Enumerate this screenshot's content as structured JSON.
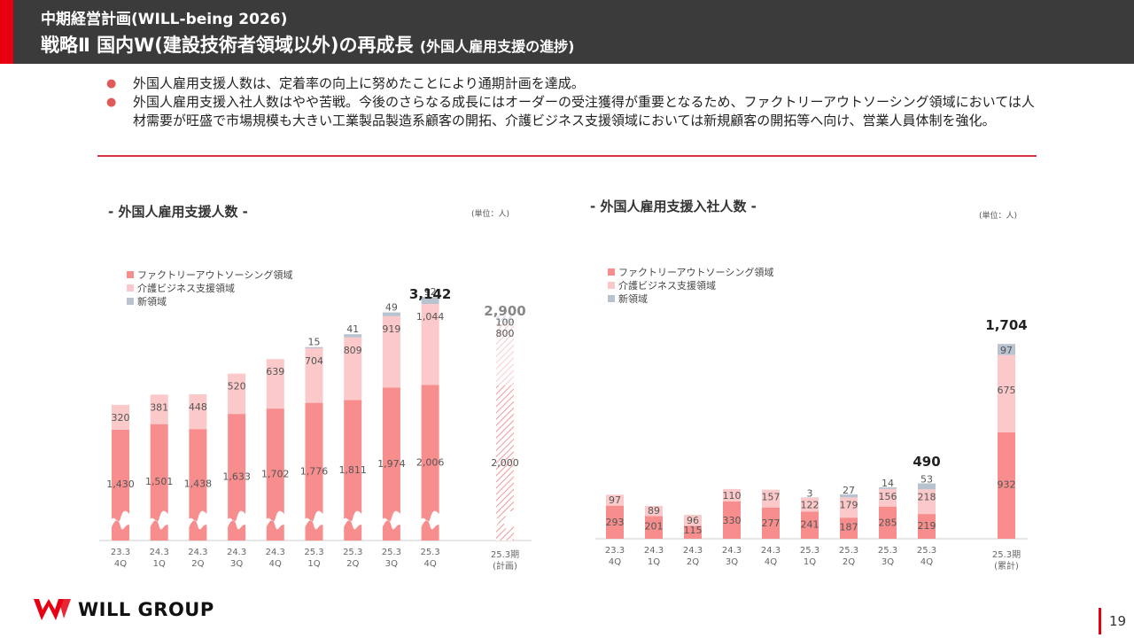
{
  "header": {
    "subtitle": "中期経営計画(WILL-being 2026)",
    "title": "戦略Ⅱ 国内W(建設技術者領域以外)の再成長",
    "title_note": "(外国人雇用支援の進捗)"
  },
  "bullets": [
    "外国人雇用支援人数は、定着率の向上に努めたことにより通期計画を達成。",
    "外国人雇用支援入社人数はやや苦戦。今後のさらなる成長にはオーダーの受注獲得が重要となるため、ファクトリーアウトソーシング領域においては人材需要が旺盛で市場規模も大きい工業製品製造系顧客の開拓、介護ビジネス支援領域においては新規顧客の開拓等へ向け、営業人員体制を強化。"
  ],
  "colors": {
    "factory": "#f78d8d",
    "care": "#fbc9c9",
    "new": "#b9c3cf",
    "accent": "#e60012",
    "header_bg": "#3b3b3b"
  },
  "chart_data": [
    {
      "type": "bar",
      "stacked": true,
      "title": "- 外国人雇用支援人数 -",
      "unit": "(単位：人)",
      "categories": [
        "23.3\n4Q",
        "24.3\n1Q",
        "24.3\n2Q",
        "24.3\n3Q",
        "24.3\n4Q",
        "25.3\n1Q",
        "25.3\n2Q",
        "25.3\n3Q",
        "25.3\n4Q"
      ],
      "series": [
        {
          "name": "ファクトリーアウトソーシング領域",
          "values": [
            1430,
            1501,
            1438,
            1633,
            1702,
            1776,
            1811,
            1974,
            2006
          ]
        },
        {
          "name": "介護ビジネス支援領域",
          "values": [
            320,
            381,
            448,
            520,
            639,
            704,
            809,
            919,
            1044
          ]
        },
        {
          "name": "新領域",
          "values": [
            null,
            null,
            null,
            null,
            null,
            15,
            41,
            49,
            92
          ]
        }
      ],
      "callout": {
        "category_index": 8,
        "label": "3,142"
      },
      "plan": {
        "category": "25.3期\n(計画)",
        "label": "2,900",
        "factory": 2000,
        "care": 800,
        "new": 100
      },
      "axis_break": true
    },
    {
      "type": "bar",
      "stacked": true,
      "title": "- 外国人雇用支援入社人数 -",
      "unit": "(単位：人)",
      "categories": [
        "23.3\n4Q",
        "24.3\n1Q",
        "24.3\n2Q",
        "24.3\n3Q",
        "24.3\n4Q",
        "25.3\n1Q",
        "25.3\n2Q",
        "25.3\n3Q",
        "25.3\n4Q"
      ],
      "series": [
        {
          "name": "ファクトリーアウトソーシング領域",
          "values": [
            293,
            201,
            115,
            330,
            277,
            241,
            187,
            285,
            219
          ]
        },
        {
          "name": "介護ビジネス支援領域",
          "values": [
            97,
            89,
            96,
            110,
            157,
            122,
            179,
            156,
            218
          ]
        },
        {
          "name": "新領域",
          "values": [
            null,
            null,
            null,
            null,
            null,
            3,
            27,
            14,
            53
          ]
        }
      ],
      "callout": {
        "category_index": 8,
        "label": "490"
      },
      "cumulative": {
        "category": "25.3期\n(累計)",
        "label": "1,704",
        "factory": 932,
        "care": 675,
        "new": 97
      }
    }
  ],
  "footer": {
    "brand": "WILL GROUP",
    "page": "19"
  }
}
